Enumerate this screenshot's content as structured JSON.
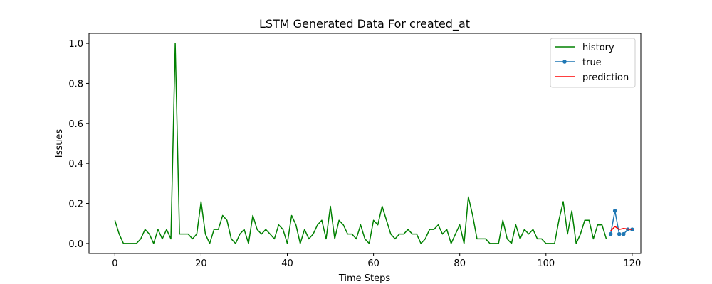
{
  "chart_data": {
    "type": "line",
    "title": "LSTM Generated Data For created_at",
    "xlabel": "Time Steps",
    "ylabel": "Issues",
    "xlim": [
      -6,
      122
    ],
    "ylim": [
      -0.05,
      1.05
    ],
    "xticks": [
      0,
      20,
      40,
      60,
      80,
      100,
      120
    ],
    "yticks": [
      0.0,
      0.2,
      0.4,
      0.6,
      0.8,
      1.0
    ],
    "xtick_labels": [
      "0",
      "20",
      "40",
      "60",
      "80",
      "100",
      "120"
    ],
    "ytick_labels": [
      "0.0",
      "0.2",
      "0.4",
      "0.6",
      "0.8",
      "1.0"
    ],
    "grid": false,
    "legend_position": "top-right",
    "series": [
      {
        "name": "history",
        "color": "#008000",
        "marker": false,
        "x": [
          0,
          1,
          2,
          3,
          4,
          5,
          6,
          7,
          8,
          9,
          10,
          11,
          12,
          13,
          14,
          15,
          16,
          17,
          18,
          19,
          20,
          21,
          22,
          23,
          24,
          25,
          26,
          27,
          28,
          29,
          30,
          31,
          32,
          33,
          34,
          35,
          36,
          37,
          38,
          39,
          40,
          41,
          42,
          43,
          44,
          45,
          46,
          47,
          48,
          49,
          50,
          51,
          52,
          53,
          54,
          55,
          56,
          57,
          58,
          59,
          60,
          61,
          62,
          63,
          64,
          65,
          66,
          67,
          68,
          69,
          70,
          71,
          72,
          73,
          74,
          75,
          76,
          77,
          78,
          79,
          80,
          81,
          82,
          83,
          84,
          85,
          86,
          87,
          88,
          89,
          90,
          91,
          92,
          93,
          94,
          95,
          96,
          97,
          98,
          99,
          100,
          101,
          102,
          103,
          104,
          105,
          106,
          107,
          108,
          109,
          110,
          111,
          112,
          113,
          114
        ],
        "y": [
          0.116,
          0.047,
          0.0,
          0.0,
          0.0,
          0.0,
          0.023,
          0.07,
          0.047,
          0.0,
          0.07,
          0.023,
          0.07,
          0.023,
          1.0,
          0.047,
          0.047,
          0.047,
          0.023,
          0.047,
          0.209,
          0.047,
          0.0,
          0.07,
          0.07,
          0.14,
          0.116,
          0.023,
          0.0,
          0.047,
          0.07,
          0.0,
          0.14,
          0.07,
          0.047,
          0.07,
          0.047,
          0.023,
          0.093,
          0.07,
          0.0,
          0.14,
          0.093,
          0.0,
          0.07,
          0.023,
          0.047,
          0.093,
          0.116,
          0.023,
          0.186,
          0.023,
          0.116,
          0.093,
          0.047,
          0.047,
          0.023,
          0.093,
          0.023,
          0.0,
          0.116,
          0.093,
          0.186,
          0.116,
          0.047,
          0.023,
          0.047,
          0.047,
          0.07,
          0.047,
          0.047,
          0.0,
          0.023,
          0.07,
          0.07,
          0.093,
          0.047,
          0.07,
          0.0,
          0.047,
          0.093,
          0.0,
          0.233,
          0.14,
          0.023,
          0.023,
          0.023,
          0.0,
          0.0,
          0.0,
          0.116,
          0.023,
          0.0,
          0.093,
          0.023,
          0.07,
          0.047,
          0.07,
          0.023,
          0.023,
          0.0,
          0.0,
          0.0,
          0.116,
          0.209,
          0.047,
          0.163,
          0.0,
          0.047,
          0.116,
          0.116,
          0.023,
          0.093,
          0.093,
          0.023
        ]
      },
      {
        "name": "true",
        "color": "#1f77b4",
        "marker": true,
        "x": [
          115,
          116,
          117,
          118,
          119,
          120
        ],
        "y": [
          0.047,
          0.163,
          0.047,
          0.047,
          0.07,
          0.07
        ]
      },
      {
        "name": "prediction",
        "color": "#ff0000",
        "marker": false,
        "x": [
          115,
          116,
          117,
          118,
          119,
          120
        ],
        "y": [
          0.062,
          0.085,
          0.07,
          0.075,
          0.072,
          0.07
        ]
      }
    ]
  }
}
